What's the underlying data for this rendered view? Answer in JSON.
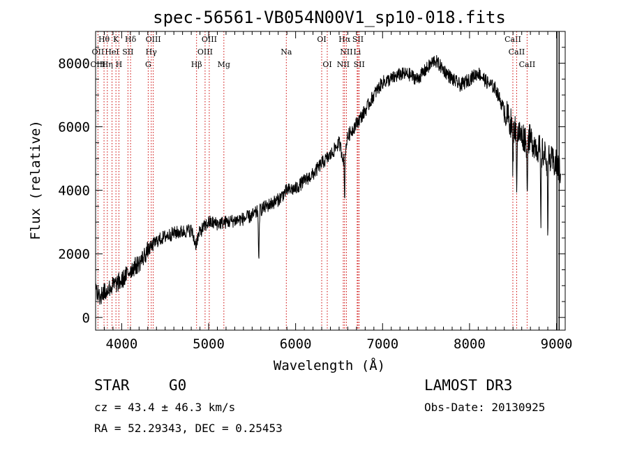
{
  "chart_data": {
    "type": "line",
    "title": "spec-56561-VB054N00V1_sp10-018.fits",
    "xlabel": "Wavelength (Å)",
    "ylabel": "Flux (relative)",
    "xlim": [
      3700,
      9100
    ],
    "ylim": [
      -400,
      9000
    ],
    "x_ticks": [
      4000,
      5000,
      6000,
      7000,
      8000,
      9000
    ],
    "y_ticks": [
      0,
      2000,
      4000,
      6000,
      8000
    ],
    "grid": false,
    "line_color": "#000000",
    "marker_color": "#cc0000",
    "spectrum_anchors": [
      [
        3700,
        1000
      ],
      [
        3750,
        600
      ],
      [
        3800,
        800
      ],
      [
        3900,
        1000
      ],
      [
        4000,
        1150
      ],
      [
        4100,
        1500
      ],
      [
        4200,
        1700
      ],
      [
        4300,
        2100
      ],
      [
        4400,
        2400
      ],
      [
        4500,
        2550
      ],
      [
        4600,
        2650
      ],
      [
        4700,
        2700
      ],
      [
        4800,
        2750
      ],
      [
        4850,
        2300
      ],
      [
        4900,
        2700
      ],
      [
        5000,
        3000
      ],
      [
        5100,
        2950
      ],
      [
        5200,
        3000
      ],
      [
        5300,
        3050
      ],
      [
        5400,
        3100
      ],
      [
        5500,
        3200
      ],
      [
        5600,
        3400
      ],
      [
        5700,
        3550
      ],
      [
        5800,
        3700
      ],
      [
        5900,
        4000
      ],
      [
        6000,
        4050
      ],
      [
        6100,
        4300
      ],
      [
        6200,
        4500
      ],
      [
        6300,
        4850
      ],
      [
        6400,
        5100
      ],
      [
        6500,
        5500
      ],
      [
        6550,
        5000
      ],
      [
        6600,
        5700
      ],
      [
        6700,
        6100
      ],
      [
        6800,
        6500
      ],
      [
        6900,
        7000
      ],
      [
        7000,
        7400
      ],
      [
        7100,
        7500
      ],
      [
        7200,
        7650
      ],
      [
        7300,
        7650
      ],
      [
        7400,
        7500
      ],
      [
        7500,
        7800
      ],
      [
        7600,
        8100
      ],
      [
        7700,
        7800
      ],
      [
        7800,
        7500
      ],
      [
        7900,
        7300
      ],
      [
        8000,
        7500
      ],
      [
        8100,
        7700
      ],
      [
        8200,
        7400
      ],
      [
        8300,
        7200
      ],
      [
        8400,
        6500
      ],
      [
        8500,
        6000
      ],
      [
        8600,
        5700
      ],
      [
        8700,
        5600
      ],
      [
        8800,
        5300
      ],
      [
        8900,
        5000
      ],
      [
        9000,
        4800
      ],
      [
        9050,
        4600
      ]
    ],
    "absorption_dips": [
      {
        "x": 5577,
        "depth": 1700
      },
      {
        "x": 6563,
        "depth": 1400
      },
      {
        "x": 8498,
        "depth": 1300
      },
      {
        "x": 8542,
        "depth": 1500
      },
      {
        "x": 8662,
        "depth": 1600
      },
      {
        "x": 8820,
        "depth": 2400
      },
      {
        "x": 8900,
        "depth": 2000
      }
    ],
    "line_markers": [
      {
        "label": "Hθ",
        "x": 3797,
        "row": 0
      },
      {
        "label": "K",
        "x": 3934,
        "row": 0
      },
      {
        "label": "Hδ",
        "x": 4102,
        "row": 0
      },
      {
        "label": "OIII",
        "x": 4363,
        "row": 0
      },
      {
        "label": "OIII",
        "x": 5007,
        "row": 0
      },
      {
        "label": "OI",
        "x": 6300,
        "row": 0
      },
      {
        "label": "Hα",
        "x": 6563,
        "row": 0
      },
      {
        "label": "SII",
        "x": 6717,
        "row": 0
      },
      {
        "label": "CaII",
        "x": 8498,
        "row": 0
      },
      {
        "label": "OII",
        "x": 3727,
        "row": 1
      },
      {
        "label": "HeI",
        "x": 3889,
        "row": 1
      },
      {
        "label": "SII",
        "x": 4072,
        "row": 1
      },
      {
        "label": "Hγ",
        "x": 4340,
        "row": 1
      },
      {
        "label": "OIII",
        "x": 4959,
        "row": 1
      },
      {
        "label": "Na",
        "x": 5893,
        "row": 1
      },
      {
        "label": "NII",
        "x": 6584,
        "row": 1
      },
      {
        "label": "Li",
        "x": 6708,
        "row": 1
      },
      {
        "label": "CaII",
        "x": 8542,
        "row": 1
      },
      {
        "label": "OIII",
        "x": 3727,
        "row": 2
      },
      {
        "label": "Hη",
        "x": 3835,
        "row": 2
      },
      {
        "label": "H",
        "x": 3968,
        "row": 2
      },
      {
        "label": "G",
        "x": 4305,
        "row": 2
      },
      {
        "label": "Hβ",
        "x": 4861,
        "row": 2
      },
      {
        "label": "Mg",
        "x": 5175,
        "row": 2
      },
      {
        "label": "OI",
        "x": 6364,
        "row": 2
      },
      {
        "label": "NII",
        "x": 6548,
        "row": 2
      },
      {
        "label": "SII",
        "x": 6731,
        "row": 2
      },
      {
        "label": "CaII",
        "x": 8662,
        "row": 2
      }
    ]
  },
  "info": {
    "class_label": "STAR",
    "subclass": "G0",
    "survey": "LAMOST DR3",
    "cz": "cz = 43.4 ± 46.3 km/s",
    "obs_date": "Obs-Date: 20130925",
    "coords": "RA =  52.29343, DEC =    0.25453"
  }
}
